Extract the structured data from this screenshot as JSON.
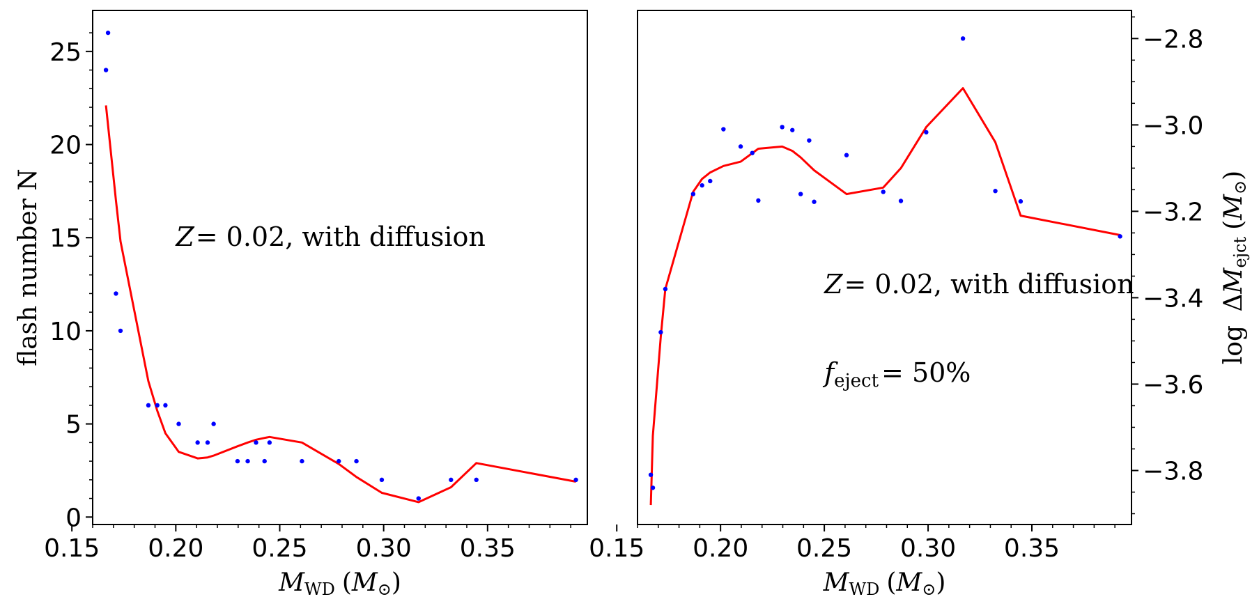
{
  "colors": {
    "points": "#0000ff",
    "line": "#ff0000",
    "axes": "#000000"
  },
  "chart_data": [
    {
      "type": "scatter",
      "name": "flash-number-panel",
      "xlim": [
        0.16,
        0.398
      ],
      "ylim": [
        -0.4,
        27.2
      ],
      "x_ticks": [
        0.15,
        0.2,
        0.25,
        0.3,
        0.35
      ],
      "x_tick_labels": [
        "0.15",
        "0.20",
        "0.25",
        "0.30",
        "0.35"
      ],
      "y_ticks": [
        0,
        5,
        10,
        15,
        20,
        25
      ],
      "y_tick_labels": [
        "0",
        "5",
        "10",
        "15",
        "20",
        "25"
      ],
      "y_axis_side": "left",
      "xlabel": {
        "main": "M",
        "sub": "WD",
        "unit_open": "(",
        "unit": "M",
        "unit_sub": "⊙",
        "unit_close": ")"
      },
      "ylabel": "flash number N",
      "annotations": [
        {
          "text_var": "Z",
          "text_rest": "= 0.02, with diffusion",
          "x": 0.2,
          "y": 15
        }
      ],
      "series": [
        {
          "name": "models",
          "kind": "points",
          "x": [
            0.1664,
            0.1674,
            0.1712,
            0.1734,
            0.1868,
            0.1911,
            0.195,
            0.2014,
            0.2105,
            0.2153,
            0.2182,
            0.2297,
            0.2346,
            0.2386,
            0.2427,
            0.2451,
            0.2607,
            0.2784,
            0.2869,
            0.2991,
            0.3168,
            0.3324,
            0.3446,
            0.3925
          ],
          "y": [
            24,
            26,
            12,
            10,
            6,
            6,
            6,
            5,
            4,
            4,
            5,
            3,
            3,
            4,
            3,
            4,
            3,
            3,
            3,
            2,
            1,
            2,
            2,
            2
          ]
        },
        {
          "name": "fit",
          "kind": "line",
          "x": [
            0.1664,
            0.1712,
            0.1734,
            0.1868,
            0.1911,
            0.195,
            0.2014,
            0.2105,
            0.2153,
            0.2182,
            0.2297,
            0.2346,
            0.2386,
            0.2427,
            0.2451,
            0.2607,
            0.2784,
            0.2869,
            0.2991,
            0.3168,
            0.3324,
            0.3446,
            0.3925
          ],
          "y": [
            22.1,
            17.0,
            14.8,
            7.3,
            5.7,
            4.5,
            3.5,
            3.15,
            3.2,
            3.3,
            3.8,
            4.0,
            4.15,
            4.25,
            4.3,
            4.0,
            2.85,
            2.15,
            1.3,
            0.8,
            1.6,
            2.9,
            1.9
          ]
        }
      ]
    },
    {
      "type": "scatter",
      "name": "ejected-mass-panel",
      "xlim": [
        0.16,
        0.398
      ],
      "ylim": [
        -3.925,
        -2.735
      ],
      "x_ticks": [
        0.15,
        0.2,
        0.25,
        0.3,
        0.35
      ],
      "x_tick_labels": [
        "0.15",
        "0.20",
        "0.25",
        "0.30",
        "0.35"
      ],
      "y_ticks": [
        -2.8,
        -3.0,
        -3.2,
        -3.4,
        -3.6,
        -3.8
      ],
      "y_tick_labels": [
        "−2.8",
        "−3.0",
        "−3.2",
        "−3.4",
        "−3.6",
        "−3.8"
      ],
      "y_axis_side": "right",
      "xlabel": {
        "main": "M",
        "sub": "WD",
        "unit_open": "(",
        "unit": "M",
        "unit_sub": "⊙",
        "unit_close": ")"
      },
      "ylabel": {
        "prefix": "log ",
        "delta": "Δ",
        "main": "M",
        "sub": "ejct",
        "unit_open": "(",
        "unit": "M",
        "unit_sub": "⊙",
        "unit_close": ")"
      },
      "annotations": [
        {
          "text_var": "Z",
          "text_rest": "= 0.02, with diffusion",
          "x": 0.25,
          "y": -3.37
        },
        {
          "text_var": "f",
          "text_sub": "eject",
          "text_rest": "= 50%",
          "x": 0.25,
          "y": -3.575
        }
      ],
      "series": [
        {
          "name": "models",
          "kind": "points",
          "x": [
            0.1664,
            0.1674,
            0.1712,
            0.1734,
            0.1868,
            0.1911,
            0.195,
            0.2014,
            0.2097,
            0.2153,
            0.2182,
            0.2297,
            0.2346,
            0.2386,
            0.2427,
            0.2451,
            0.2607,
            0.2784,
            0.2869,
            0.2991,
            0.3168,
            0.3324,
            0.3446,
            0.3925
          ],
          "y": [
            -3.81,
            -3.84,
            -3.48,
            -3.38,
            -3.16,
            -3.14,
            -3.13,
            -3.01,
            -3.05,
            -3.065,
            -3.175,
            -3.005,
            -3.012,
            -3.16,
            -3.036,
            -3.178,
            -3.07,
            -3.155,
            -3.176,
            -3.017,
            -2.8,
            -3.153,
            -3.177,
            -3.258
          ]
        },
        {
          "name": "fit",
          "kind": "line",
          "x": [
            0.1664,
            0.1674,
            0.1712,
            0.1734,
            0.1868,
            0.1911,
            0.195,
            0.2014,
            0.2097,
            0.2182,
            0.2297,
            0.2346,
            0.2386,
            0.2451,
            0.2607,
            0.2784,
            0.2869,
            0.2991,
            0.3168,
            0.3324,
            0.3446,
            0.3925
          ],
          "y": [
            -3.88,
            -3.72,
            -3.49,
            -3.38,
            -3.155,
            -3.125,
            -3.11,
            -3.095,
            -3.085,
            -3.055,
            -3.05,
            -3.06,
            -3.075,
            -3.105,
            -3.16,
            -3.145,
            -3.1,
            -3.005,
            -2.915,
            -3.04,
            -3.21,
            -3.255
          ]
        }
      ]
    }
  ]
}
